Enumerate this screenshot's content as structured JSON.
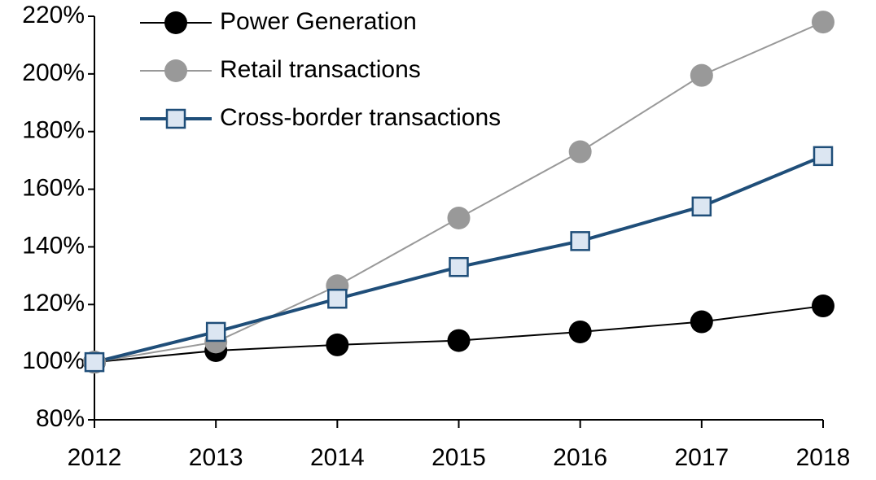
{
  "chart_data": {
    "type": "line",
    "x": [
      2012,
      2013,
      2014,
      2015,
      2016,
      2017,
      2018
    ],
    "xlim": [
      2012,
      2018
    ],
    "xticks": [
      2012,
      2013,
      2014,
      2015,
      2016,
      2017,
      2018
    ],
    "ylim": [
      80,
      220
    ],
    "yticks": [
      {
        "value": 80,
        "label": "80%"
      },
      {
        "value": 100,
        "label": "100%"
      },
      {
        "value": 120,
        "label": "120%"
      },
      {
        "value": 140,
        "label": "140%"
      },
      {
        "value": 160,
        "label": "160%"
      },
      {
        "value": 180,
        "label": "180%"
      },
      {
        "value": 200,
        "label": "200%"
      },
      {
        "value": 220,
        "label": "220%"
      }
    ],
    "legend": "top-left",
    "series": [
      {
        "name": "Power Generation",
        "color": "#000000",
        "marker": "circle",
        "marker_fill": "#000000",
        "line_width": 2,
        "values": [
          100,
          104,
          106,
          107.5,
          110.5,
          114,
          119.5
        ]
      },
      {
        "name": "Retail transactions",
        "color": "#999999",
        "marker": "circle",
        "marker_fill": "#999999",
        "line_width": 2,
        "values": [
          100,
          107,
          126.5,
          150,
          173,
          199.5,
          218
        ]
      },
      {
        "name": "Cross-border transactions",
        "color": "#1f4e79",
        "marker": "square",
        "marker_fill": "#dce6f2",
        "line_width": 4,
        "values": [
          100,
          110.5,
          122,
          133,
          142,
          154,
          171.5
        ]
      }
    ]
  }
}
